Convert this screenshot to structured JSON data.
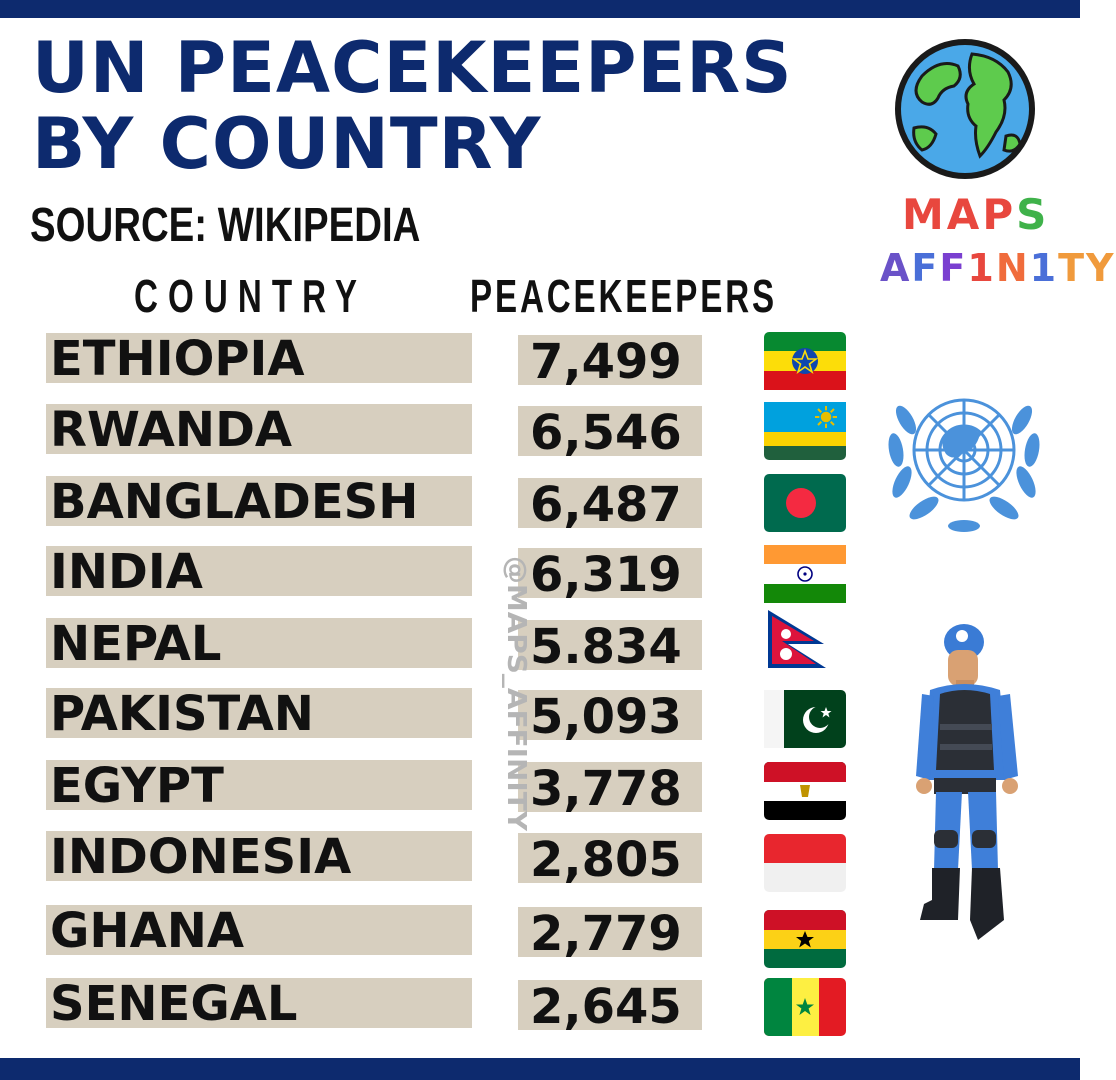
{
  "title": "UN PEACEKEEPERS BY COUNTRY",
  "source": "SOURCE: WIKIPEDIA",
  "watermark": "@MAPS_AFFINITY",
  "brand": {
    "line1": "MAPS",
    "line2": "AFF1N1TY"
  },
  "colors": {
    "navy": "#0d2a6e",
    "row_fill": "#d7cfbf",
    "text": "#111111"
  },
  "icons": [
    "globe-logo-icon",
    "un-emblem-icon",
    "peacekeeper-soldier-icon"
  ],
  "chart_data": {
    "type": "table",
    "columns": [
      "COUNTRY",
      "PEACEKEEPERS"
    ],
    "rows": [
      {
        "country": "ETHIOPIA",
        "peacekeepers": "7,499",
        "value": 7499,
        "flag": "ethiopia-flag-icon"
      },
      {
        "country": "RWANDA",
        "peacekeepers": "6,546",
        "value": 6546,
        "flag": "rwanda-flag-icon"
      },
      {
        "country": "BANGLADESH",
        "peacekeepers": "6,487",
        "value": 6487,
        "flag": "bangladesh-flag-icon"
      },
      {
        "country": "INDIA",
        "peacekeepers": "6,319",
        "value": 6319,
        "flag": "india-flag-icon"
      },
      {
        "country": "NEPAL",
        "peacekeepers": "5.834",
        "value": 5834,
        "flag": "nepal-flag-icon"
      },
      {
        "country": "PAKISTAN",
        "peacekeepers": "5,093",
        "value": 5093,
        "flag": "pakistan-flag-icon"
      },
      {
        "country": "EGYPT",
        "peacekeepers": "3,778",
        "value": 3778,
        "flag": "egypt-flag-icon"
      },
      {
        "country": "INDONESIA",
        "peacekeepers": "2,805",
        "value": 2805,
        "flag": "indonesia-flag-icon"
      },
      {
        "country": "GHANA",
        "peacekeepers": "2,779",
        "value": 2779,
        "flag": "ghana-flag-icon"
      },
      {
        "country": "SENEGAL",
        "peacekeepers": "2,645",
        "value": 2645,
        "flag": "senegal-flag-icon"
      }
    ]
  }
}
